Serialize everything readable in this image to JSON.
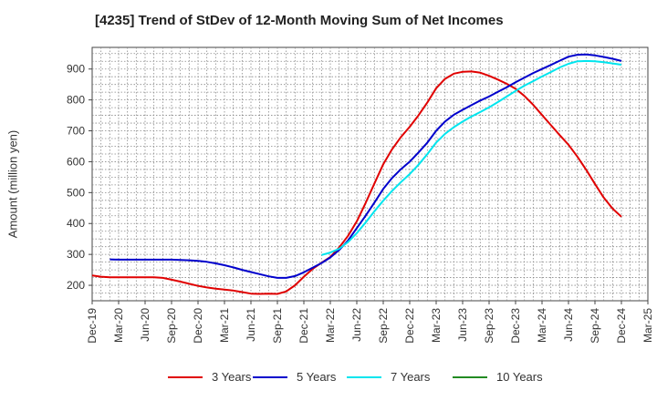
{
  "title": "[4235]  Trend of StDev of 12-Month Moving Sum of Net Incomes",
  "chart_data": {
    "type": "line",
    "title": "[4235]  Trend of StDev of 12-Month Moving Sum of Net Incomes",
    "ylabel": "Amount (million yen)",
    "xlabel": "",
    "ylim": [
      150,
      970
    ],
    "yticks": [
      200,
      300,
      400,
      500,
      600,
      700,
      800,
      900
    ],
    "x_ticks": [
      "Dec-19",
      "Mar-20",
      "Jun-20",
      "Sep-20",
      "Dec-20",
      "Mar-21",
      "Jun-21",
      "Sep-21",
      "Dec-21",
      "Mar-22",
      "Jun-22",
      "Sep-22",
      "Dec-22",
      "Mar-23",
      "Jun-23",
      "Sep-23",
      "Dec-23",
      "Mar-24",
      "Jun-24",
      "Sep-24",
      "Dec-24",
      "Mar-25"
    ],
    "grid": true,
    "legend_position": "bottom",
    "series": [
      {
        "name": "3 Years",
        "color": "#e00000",
        "points": [
          [
            0,
            232
          ],
          [
            0.33,
            228
          ],
          [
            0.67,
            226
          ],
          [
            1,
            226
          ],
          [
            1.33,
            226
          ],
          [
            1.67,
            226
          ],
          [
            2,
            226
          ],
          [
            2.33,
            226
          ],
          [
            2.67,
            224
          ],
          [
            3,
            218
          ],
          [
            3.33,
            212
          ],
          [
            3.67,
            205
          ],
          [
            4,
            198
          ],
          [
            4.33,
            193
          ],
          [
            4.67,
            189
          ],
          [
            5,
            186
          ],
          [
            5.33,
            183
          ],
          [
            5.67,
            178
          ],
          [
            6,
            173
          ],
          [
            6.33,
            172
          ],
          [
            6.67,
            173
          ],
          [
            7,
            172
          ],
          [
            7.33,
            180
          ],
          [
            7.67,
            200
          ],
          [
            8,
            228
          ],
          [
            8.33,
            253
          ],
          [
            8.67,
            273
          ],
          [
            9,
            292
          ],
          [
            9.33,
            322
          ],
          [
            9.67,
            360
          ],
          [
            10,
            407
          ],
          [
            10.33,
            466
          ],
          [
            10.67,
            530
          ],
          [
            11,
            592
          ],
          [
            11.33,
            640
          ],
          [
            11.67,
            680
          ],
          [
            12,
            713
          ],
          [
            12.33,
            750
          ],
          [
            12.67,
            792
          ],
          [
            13,
            838
          ],
          [
            13.33,
            868
          ],
          [
            13.67,
            885
          ],
          [
            14,
            891
          ],
          [
            14.33,
            892
          ],
          [
            14.67,
            888
          ],
          [
            15,
            878
          ],
          [
            15.33,
            866
          ],
          [
            15.67,
            852
          ],
          [
            16,
            836
          ],
          [
            16.33,
            813
          ],
          [
            16.67,
            784
          ],
          [
            17,
            751
          ],
          [
            17.33,
            719
          ],
          [
            17.67,
            686
          ],
          [
            18,
            655
          ],
          [
            18.33,
            617
          ],
          [
            18.67,
            574
          ],
          [
            19,
            528
          ],
          [
            19.33,
            484
          ],
          [
            19.67,
            448
          ],
          [
            20,
            422
          ]
        ]
      },
      {
        "name": "5 Years",
        "color": "#0000cc",
        "points": [
          [
            0.67,
            284
          ],
          [
            1,
            283
          ],
          [
            1.33,
            283
          ],
          [
            1.67,
            283
          ],
          [
            2,
            283
          ],
          [
            2.33,
            283
          ],
          [
            2.67,
            283
          ],
          [
            3,
            283
          ],
          [
            3.33,
            282
          ],
          [
            3.67,
            281
          ],
          [
            4,
            279
          ],
          [
            4.33,
            276
          ],
          [
            4.67,
            271
          ],
          [
            5,
            265
          ],
          [
            5.33,
            258
          ],
          [
            5.67,
            250
          ],
          [
            6,
            243
          ],
          [
            6.33,
            236
          ],
          [
            6.67,
            229
          ],
          [
            7,
            224
          ],
          [
            7.33,
            224
          ],
          [
            7.67,
            230
          ],
          [
            8,
            242
          ],
          [
            8.33,
            257
          ],
          [
            8.67,
            272
          ],
          [
            9,
            290
          ],
          [
            9.33,
            314
          ],
          [
            9.67,
            345
          ],
          [
            10,
            385
          ],
          [
            10.33,
            425
          ],
          [
            10.67,
            468
          ],
          [
            11,
            512
          ],
          [
            11.33,
            547
          ],
          [
            11.67,
            576
          ],
          [
            12,
            600
          ],
          [
            12.33,
            630
          ],
          [
            12.67,
            662
          ],
          [
            13,
            700
          ],
          [
            13.33,
            730
          ],
          [
            13.67,
            752
          ],
          [
            14,
            768
          ],
          [
            14.33,
            783
          ],
          [
            14.67,
            798
          ],
          [
            15,
            811
          ],
          [
            15.33,
            826
          ],
          [
            15.67,
            841
          ],
          [
            16,
            857
          ],
          [
            16.33,
            872
          ],
          [
            16.67,
            887
          ],
          [
            17,
            900
          ],
          [
            17.33,
            913
          ],
          [
            17.67,
            927
          ],
          [
            18,
            940
          ],
          [
            18.33,
            946
          ],
          [
            18.67,
            947
          ],
          [
            19,
            944
          ],
          [
            19.33,
            939
          ],
          [
            19.67,
            933
          ],
          [
            20,
            926
          ]
        ]
      },
      {
        "name": "7 Years",
        "color": "#00e5ee",
        "points": [
          [
            8.67,
            298
          ],
          [
            9,
            306
          ],
          [
            9.33,
            318
          ],
          [
            9.67,
            340
          ],
          [
            10,
            369
          ],
          [
            10.33,
            403
          ],
          [
            10.67,
            440
          ],
          [
            11,
            474
          ],
          [
            11.33,
            505
          ],
          [
            11.67,
            534
          ],
          [
            12,
            560
          ],
          [
            12.33,
            590
          ],
          [
            12.67,
            625
          ],
          [
            13,
            662
          ],
          [
            13.33,
            690
          ],
          [
            13.67,
            712
          ],
          [
            14,
            730
          ],
          [
            14.33,
            746
          ],
          [
            14.67,
            761
          ],
          [
            15,
            776
          ],
          [
            15.33,
            793
          ],
          [
            15.67,
            811
          ],
          [
            16,
            829
          ],
          [
            16.33,
            846
          ],
          [
            16.67,
            861
          ],
          [
            17,
            876
          ],
          [
            17.33,
            890
          ],
          [
            17.67,
            905
          ],
          [
            18,
            917
          ],
          [
            18.33,
            925
          ],
          [
            18.67,
            926
          ],
          [
            19,
            925
          ],
          [
            19.33,
            922
          ],
          [
            19.67,
            918
          ],
          [
            20,
            914
          ]
        ]
      },
      {
        "name": "10 Years",
        "color": "#228b22",
        "points": []
      }
    ]
  }
}
